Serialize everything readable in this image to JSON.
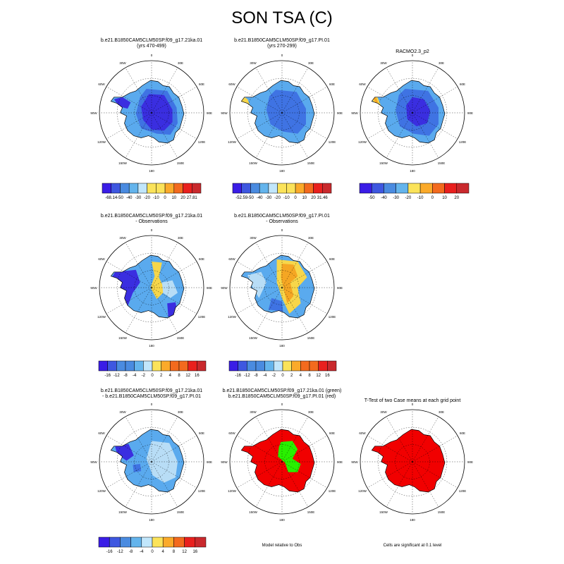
{
  "title": "SON TSA (C)",
  "colors": {
    "colorbar": [
      "#3a1de6",
      "#3e57e0",
      "#4a8be0",
      "#64b4ec",
      "#c1e6fb",
      "#fbe35a",
      "#fbaa2a",
      "#f36a1e",
      "#e9201e",
      "#c9292d"
    ],
    "ice_dark": "#3a2ee0",
    "ice_mid": "#3f73e3",
    "ice_light": "#5aaaee",
    "ice_pale": "#b8ddf6",
    "warm_yellow": "#f7d64a",
    "warm_orange": "#f5a623",
    "red": "#f10000",
    "green": "#29f000",
    "grid": "#000000"
  },
  "panels": [
    {
      "id": "p1",
      "title_line1": "b.e21.B1850CAM5CLM50SP.f09_g17.21ka.01",
      "title_line2": "(yrs 470-499)",
      "colorbar_labels": [
        "-68.14",
        "-50",
        "-40",
        "-30",
        "-20",
        "-10",
        "0",
        "10",
        "20",
        "27.81"
      ],
      "theme": "cold_dark"
    },
    {
      "id": "p2",
      "title_line1": "b.e21.B1850CAM5CLM50SP.f09_g17.PI.01",
      "title_line2": "(yrs 270-299)",
      "colorbar_labels": [
        "-52.59",
        "-50",
        "-40",
        "-30",
        "-20",
        "-10",
        "0",
        "10",
        "20",
        "31.46"
      ],
      "theme": "cold_mid"
    },
    {
      "id": "p3",
      "title_line1": "RACMO2.3_p2",
      "title_line2": "",
      "colorbar_labels": [
        "-50",
        "-40",
        "-30",
        "-20",
        "-10",
        "0",
        "10",
        "20"
      ],
      "theme": "cold_obs"
    },
    {
      "id": "p4",
      "title_line1": "b.e21.B1850CAM5CLM50SP.f09_g17.21ka.01",
      "title_line2": "- Observations",
      "colorbar_labels": [
        "-16",
        "-12",
        "-8",
        "-4",
        "-2",
        "0",
        "2",
        "4",
        "8",
        "12",
        "16"
      ],
      "theme": "diff_cold"
    },
    {
      "id": "p5",
      "title_line1": "b.e21.B1850CAM5CLM50SP.f09_g17.PI.01",
      "title_line2": "- Observations",
      "colorbar_labels": [
        "-16",
        "-12",
        "-8",
        "-4",
        "-2",
        "0",
        "2",
        "4",
        "8",
        "12",
        "16"
      ],
      "theme": "diff_warm"
    },
    {
      "id": "p6",
      "title_line1": "b.e21.B1850CAM5CLM50SP.f09_g17.21ka.01",
      "title_line2": "- b.e21.B1850CAM5CLM50SP.f09_g17.PI.01",
      "colorbar_labels": [
        "-16",
        "-12",
        "-8",
        "-4",
        "0",
        "4",
        "8",
        "12",
        "16"
      ],
      "theme": "diff_cases"
    },
    {
      "id": "p7",
      "title_line1": "b.e21.B1850CAM5CLM50SP.f09_g17.21ka.01 (green)",
      "title_line2": "b.e21.B1850CAM5CLM50SP.f09_g17.PI.01 (red)",
      "footer": "Model relative to Obs",
      "theme": "redgreen"
    },
    {
      "id": "p8",
      "title_line1": "T-Test of two Case means at each grid point",
      "title_line2": "",
      "footer": "Cells are significant at 0.1 level",
      "theme": "ttest"
    }
  ],
  "map_labels": {
    "lon": [
      "0",
      "30E",
      "60E",
      "90E",
      "120E",
      "150E",
      "180",
      "150W",
      "120W",
      "90W",
      "60W",
      "30W"
    ]
  },
  "chart_data": [
    {
      "type": "heatmap",
      "title": "b.e21.B1850CAM5CLM50SP.f09_g17.21ka.01 (yrs 470-499)",
      "projection": "south polar stereographic",
      "variable": "TSA",
      "season": "SON",
      "units": "C",
      "colorbar_levels": [
        -50,
        -40,
        -30,
        -20,
        -10,
        0,
        10,
        20
      ],
      "colorbar_min": -68.14,
      "colorbar_max": 27.81
    },
    {
      "type": "heatmap",
      "title": "b.e21.B1850CAM5CLM50SP.f09_g17.PI.01 (yrs 270-299)",
      "projection": "south polar stereographic",
      "colorbar_levels": [
        -50,
        -40,
        -30,
        -20,
        -10,
        0,
        10,
        20
      ],
      "colorbar_min": -52.59,
      "colorbar_max": 31.46
    },
    {
      "type": "heatmap",
      "title": "RACMO2.3_p2",
      "projection": "south polar stereographic",
      "colorbar_levels": [
        -50,
        -40,
        -30,
        -20,
        -10,
        0,
        10,
        20
      ]
    },
    {
      "type": "heatmap",
      "title": "b.e21.B1850CAM5CLM50SP.f09_g17.21ka.01 - Observations",
      "colorbar_levels": [
        -16,
        -12,
        -8,
        -4,
        -2,
        0,
        2,
        4,
        8,
        12,
        16
      ]
    },
    {
      "type": "heatmap",
      "title": "b.e21.B1850CAM5CLM50SP.f09_g17.PI.01 - Observations",
      "colorbar_levels": [
        -16,
        -12,
        -8,
        -4,
        -2,
        0,
        2,
        4,
        8,
        12,
        16
      ]
    },
    {
      "type": "heatmap",
      "title": "b.e21.B1850CAM5CLM50SP.f09_g17.21ka.01 - b.e21.B1850CAM5CLM50SP.f09_g17.PI.01",
      "colorbar_levels": [
        -16,
        -12,
        -8,
        -4,
        0,
        4,
        8,
        12,
        16
      ]
    },
    {
      "type": "heatmap",
      "title": "b.e21.B1850CAM5CLM50SP.f09_g17.21ka.01 (green) b.e21.B1850CAM5CLM50SP.f09_g17.PI.01 (red)",
      "footer": "Model relative to Obs"
    },
    {
      "type": "heatmap",
      "title": "T-Test of two Case means at each grid point",
      "footer": "Cells are significant at 0.1 level"
    }
  ]
}
